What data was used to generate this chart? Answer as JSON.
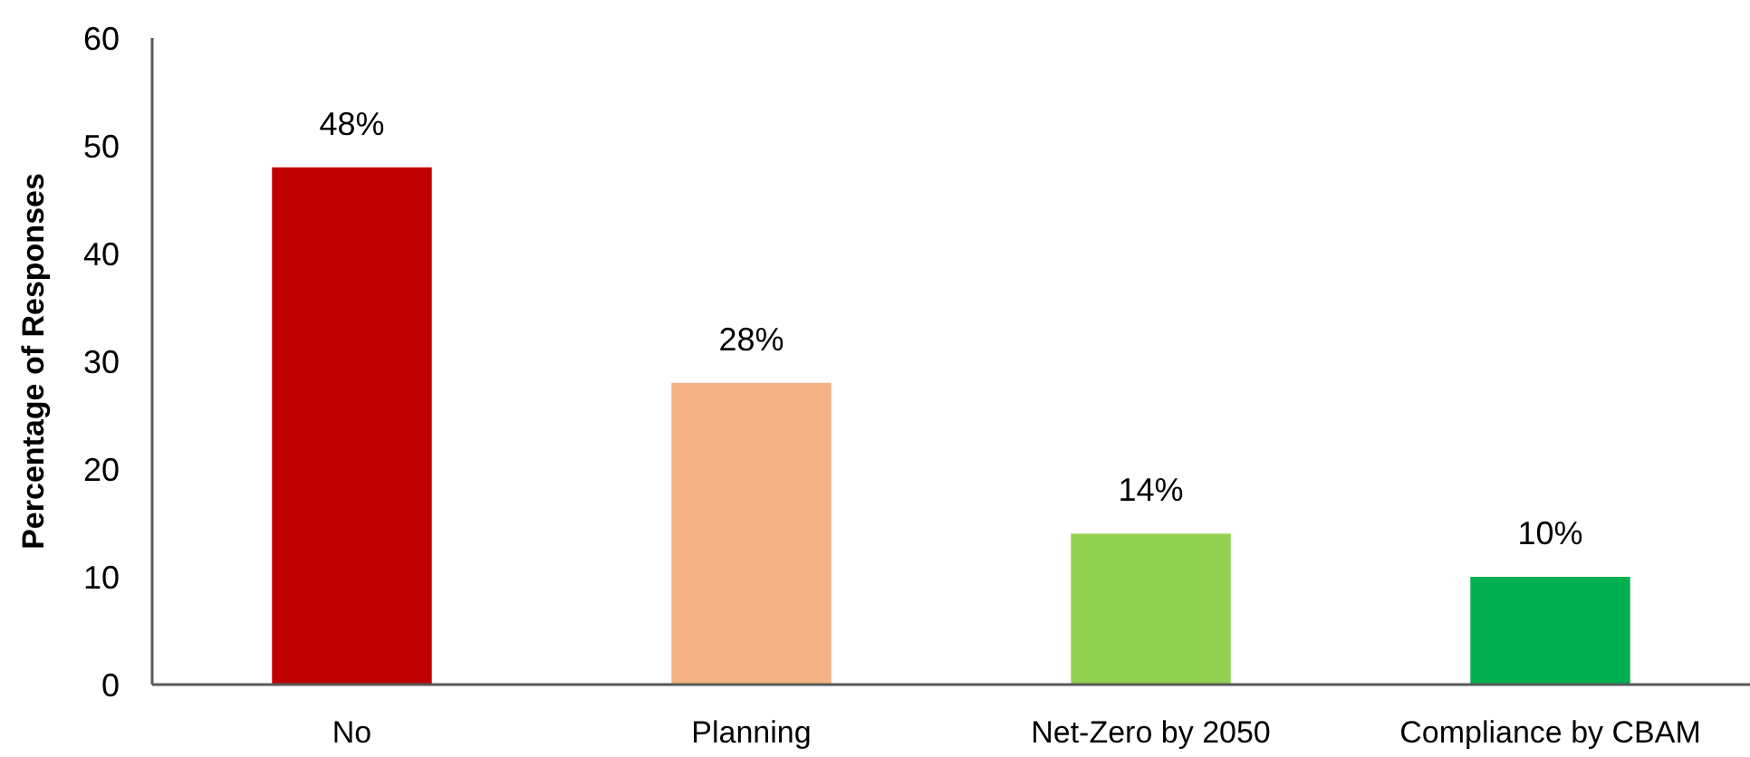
{
  "chart_data": {
    "type": "bar",
    "ylabel": "Percentage of Responses",
    "categories": [
      "No",
      "Planning",
      "Net-Zero by 2050",
      "Compliance by CBAM"
    ],
    "values": [
      48,
      28,
      14,
      10
    ],
    "colors": [
      "#c00000",
      "#f4b183",
      "#92d050",
      "#00b050"
    ],
    "value_labels": [
      "48%",
      "28%",
      "14%",
      "10%"
    ],
    "ylim": [
      0,
      60
    ],
    "yticks": [
      0,
      10,
      20,
      30,
      40,
      50,
      60
    ]
  }
}
